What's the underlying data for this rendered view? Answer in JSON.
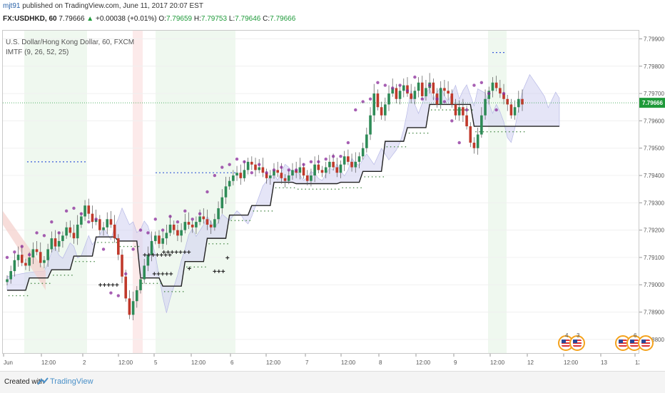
{
  "header": {
    "user": "mjt91",
    "published": "published on TradingView.com, June 11, 2017 20:07 EST"
  },
  "quote": {
    "symbol": "FX:USDHKD, 60",
    "last": "7.79666",
    "change": "+0.00038 (+0.01%)",
    "open_label": "O:",
    "open": "7.79659",
    "high_label": "H:",
    "high": "7.79753",
    "low_label": "L:",
    "low": "7.79646",
    "close_label": "C:",
    "close": "7.79666"
  },
  "legend": {
    "line1": "U.S. Dollar/Hong Kong Dollar, 60, FXCM",
    "line2": "IMTF (9, 26, 52, 25)"
  },
  "footer": {
    "created": "Created with",
    "brand": "TradingView"
  },
  "calendar": {
    "badge1": "4",
    "badge2": "3",
    "badge3": "6"
  },
  "colors": {
    "bull": "#2e8b57",
    "bear": "#c0392b",
    "cloud_bull": "#cfd0f0",
    "cloud_bear": "#f3cfcb",
    "base_line": "#222222",
    "marker": "#8a2a9a",
    "price_label_bg": "#1f9a3a"
  },
  "chart_data": {
    "type": "candlestick",
    "title": "U.S. Dollar/Hong Kong Dollar, 60, FXCM",
    "indicator": "IMTF (9, 26, 52, 25)",
    "last_price": "7.79666",
    "ylim": [
      7.7875,
      7.7993
    ],
    "y_ticks": [
      "7.79900",
      "7.79800",
      "7.79700",
      "7.79600",
      "7.79500",
      "7.79400",
      "7.79300",
      "7.79200",
      "7.79100",
      "7.79000",
      "7.78900",
      "7.78800"
    ],
    "x_ticks": [
      "Jun",
      "12:00",
      "2",
      "12:00",
      "5",
      "12:00",
      "6",
      "12:00",
      "7",
      "12:00",
      "8",
      "12:00",
      "9",
      "12:00",
      "12",
      "12:00",
      "13",
      "12:0"
    ],
    "closes": [
      7.7902,
      7.7905,
      7.7909,
      7.7911,
      7.7908,
      7.7907,
      7.791,
      7.7913,
      7.7912,
      7.7908,
      7.7909,
      7.7913,
      7.7917,
      7.7914,
      7.7916,
      7.7918,
      7.7921,
      7.7919,
      7.7917,
      7.7922,
      7.7925,
      7.7929,
      7.7926,
      7.7923,
      7.7924,
      7.792,
      7.7921,
      7.7924,
      7.7922,
      7.7917,
      7.7911,
      7.7903,
      7.7895,
      7.7889,
      7.7894,
      7.7898,
      7.7902,
      7.7907,
      7.7911,
      7.7916,
      7.7918,
      7.7915,
      7.7917,
      7.7919,
      7.7922,
      7.792,
      7.7918,
      7.792,
      7.7923,
      7.7922,
      7.7921,
      7.7923,
      7.7925,
      7.7924,
      7.7922,
      7.7921,
      7.7924,
      7.7928,
      7.7932,
      7.7936,
      7.7938,
      7.794,
      7.7941,
      7.7939,
      7.7942,
      7.7945,
      7.7944,
      7.7942,
      7.7943,
      7.7941,
      7.7939,
      7.794,
      7.7942,
      7.7941,
      7.7939,
      7.7938,
      7.794,
      7.7942,
      7.7941,
      7.7943,
      7.794,
      7.7938,
      7.794,
      7.7944,
      7.7942,
      7.7941,
      7.7943,
      7.7945,
      7.7943,
      7.7941,
      7.7944,
      7.7947,
      7.7945,
      7.7943,
      7.7945,
      7.7947,
      7.795,
      7.7955,
      7.7962,
      7.797,
      7.7965,
      7.7962,
      7.7966,
      7.797,
      7.7972,
      7.7968,
      7.7971,
      7.7973,
      7.797,
      7.7968,
      7.7971,
      7.7974,
      7.7969,
      7.7972,
      7.7974,
      7.797,
      7.7966,
      7.7972,
      7.7971,
      7.797,
      7.7966,
      7.7962,
      7.7965,
      7.7962,
      7.7958,
      7.7952,
      7.795,
      7.7955,
      7.7962,
      7.7968,
      7.7971,
      7.7974,
      7.7972,
      7.797,
      7.7968,
      7.7966,
      7.7962,
      7.7965,
      7.7968,
      7.7966
    ],
    "markers": [
      {
        "time": 0.22,
        "price": 7.791,
        "text": "+++++++"
      },
      {
        "time": 0.25,
        "price": 7.7911,
        "text": "+++++++"
      },
      {
        "time": 0.235,
        "price": 7.7903,
        "text": "+++++"
      },
      {
        "time": 0.15,
        "price": 7.7899,
        "text": "+++++"
      },
      {
        "time": 0.33,
        "price": 7.7904,
        "text": "+++"
      },
      {
        "time": 0.29,
        "price": 7.7905,
        "text": "+"
      },
      {
        "time": 0.35,
        "price": 7.7909,
        "text": "+"
      }
    ]
  }
}
